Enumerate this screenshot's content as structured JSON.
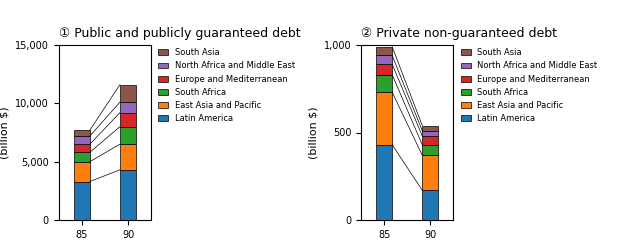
{
  "chart_data": [
    {
      "type": "bar",
      "stacked": true,
      "title": "① Public and publicly guaranteed debt",
      "ylabel": "(billion $)",
      "categories": [
        "85",
        "90"
      ],
      "series": [
        {
          "name": "Latin America",
          "values": [
            3300,
            4300
          ]
        },
        {
          "name": "East Asia and Pacific",
          "values": [
            1700,
            2200
          ]
        },
        {
          "name": "South Africa",
          "values": [
            800,
            1500
          ]
        },
        {
          "name": "Europe and Mediterranean",
          "values": [
            700,
            1200
          ]
        },
        {
          "name": "North Africa and Middle East",
          "values": [
            700,
            900
          ]
        },
        {
          "name": "South Asia",
          "values": [
            500,
            1500
          ]
        }
      ],
      "ylim": [
        0,
        15000
      ],
      "yticks": [
        0,
        {
          "value": 5000,
          "label": "5,000"
        },
        {
          "value": 10000,
          "label": "10,000"
        },
        {
          "value": 15000,
          "label": "15,000"
        }
      ],
      "legend": "upper left"
    },
    {
      "type": "bar",
      "stacked": true,
      "title": "② Private non-guaranteed debt",
      "ylabel": "(billion $)",
      "categories": [
        "85",
        "90"
      ],
      "series": [
        {
          "name": "Latin America",
          "values": [
            430,
            170
          ]
        },
        {
          "name": "East Asia and Pacific",
          "values": [
            300,
            200
          ]
        },
        {
          "name": "South Africa",
          "values": [
            100,
            60
          ]
        },
        {
          "name": "Europe and Mediterranean",
          "values": [
            60,
            50
          ]
        },
        {
          "name": "North Africa and Middle East",
          "values": [
            50,
            30
          ]
        },
        {
          "name": "South Asia",
          "values": [
            50,
            30
          ]
        }
      ],
      "ylim": [
        0,
        1000
      ],
      "yticks": [
        0,
        500,
        {
          "value": 1000,
          "label": "1,000"
        }
      ],
      "legend": "upper left"
    }
  ]
}
